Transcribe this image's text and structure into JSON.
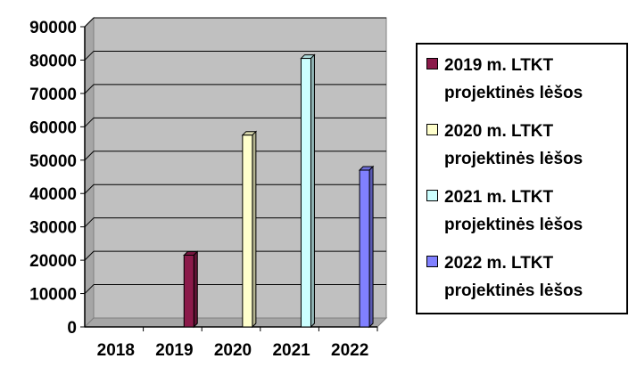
{
  "chart_data": {
    "type": "bar",
    "style": "3d-column",
    "categories": [
      "2018",
      "2019",
      "2020",
      "2021",
      "2022"
    ],
    "series": [
      {
        "name": "2019 m. LTKT projektinės lėšos",
        "values": [
          0,
          21500,
          0,
          0,
          0
        ],
        "color": "#8b1a4a"
      },
      {
        "name": "2020 m. LTKT projektinės lėšos",
        "values": [
          0,
          0,
          57500,
          0,
          0
        ],
        "color": "#ffffcc"
      },
      {
        "name": "2021 m. LTKT projektinės lėšos",
        "values": [
          0,
          0,
          0,
          80500,
          0
        ],
        "color": "#ccffff"
      },
      {
        "name": "2022 m. LTKT projektinės lėšos",
        "values": [
          0,
          0,
          0,
          0,
          47000
        ],
        "color": "#8080ff"
      }
    ],
    "y_ticks": [
      "0",
      "10000",
      "20000",
      "30000",
      "40000",
      "50000",
      "60000",
      "70000",
      "80000",
      "90000"
    ],
    "ylim": [
      0,
      90000
    ],
    "grid": true,
    "plot_background": "#c0c0c0",
    "legend_position": "right"
  }
}
